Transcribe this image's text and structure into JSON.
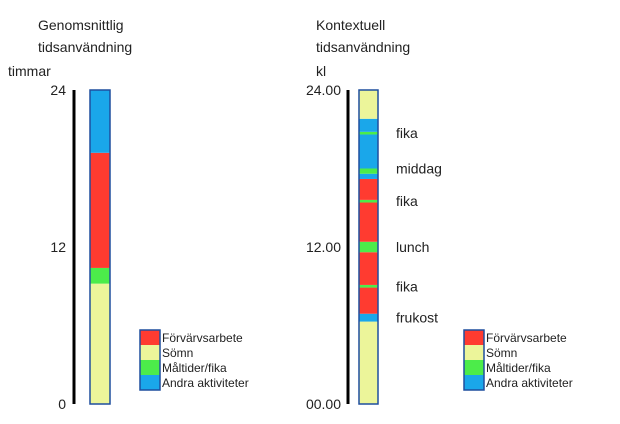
{
  "colors": {
    "forvarvsarbete": "#ff3b30",
    "somn": "#ecf59a",
    "maltider": "#4cec4a",
    "andra": "#1aa7ea",
    "axis": "#000000",
    "frame": "#1f4e9e"
  },
  "chart_data": [
    {
      "type": "bar",
      "title": "Genomsnittlig tidsanvändning",
      "ylabel": "timmar",
      "ylim": [
        0,
        24
      ],
      "y_ticks": [
        "0",
        "12",
        "24"
      ],
      "y_tick_values": [
        0,
        12,
        24
      ],
      "segments": [
        {
          "name": "Sömn",
          "color_key": "somn",
          "from": 0,
          "to": 9.2
        },
        {
          "name": "Måltider/fika",
          "color_key": "maltider",
          "from": 9.2,
          "to": 10.4
        },
        {
          "name": "Förvärvsarbete",
          "color_key": "forvarvsarbete",
          "from": 10.4,
          "to": 19.2
        },
        {
          "name": "Andra aktiviteter",
          "color_key": "andra",
          "from": 19.2,
          "to": 24
        }
      ],
      "legend": [
        {
          "label": "Förvärvsarbete",
          "color_key": "forvarvsarbete"
        },
        {
          "label": "Sömn",
          "color_key": "somn"
        },
        {
          "label": "Måltider/fika",
          "color_key": "maltider"
        },
        {
          "label": "Andra aktiviteter",
          "color_key": "andra"
        }
      ]
    },
    {
      "type": "bar",
      "title": "Kontextuell tidsanvändning",
      "ylabel": "kl",
      "ylim": [
        0,
        24
      ],
      "y_ticks": [
        "00.00",
        "12.00",
        "24.00"
      ],
      "y_tick_values": [
        0,
        12,
        24
      ],
      "segments": [
        {
          "color_key": "somn",
          "from": 0,
          "to": 6.3
        },
        {
          "color_key": "andra",
          "from": 6.3,
          "to": 6.9
        },
        {
          "color_key": "forvarvsarbete",
          "from": 6.9,
          "to": 8.9
        },
        {
          "color_key": "maltider",
          "from": 8.9,
          "to": 9.1
        },
        {
          "color_key": "forvarvsarbete",
          "from": 9.1,
          "to": 11.6
        },
        {
          "color_key": "maltider",
          "from": 11.6,
          "to": 12.4
        },
        {
          "color_key": "forvarvsarbete",
          "from": 12.4,
          "to": 15.4
        },
        {
          "color_key": "maltider",
          "from": 15.4,
          "to": 15.6
        },
        {
          "color_key": "forvarvsarbete",
          "from": 15.6,
          "to": 17.2
        },
        {
          "color_key": "andra",
          "from": 17.2,
          "to": 17.6
        },
        {
          "color_key": "maltider",
          "from": 17.6,
          "to": 18.0
        },
        {
          "color_key": "andra",
          "from": 18.0,
          "to": 20.6
        },
        {
          "color_key": "maltider",
          "from": 20.6,
          "to": 20.8
        },
        {
          "color_key": "andra",
          "from": 20.8,
          "to": 21.8
        },
        {
          "color_key": "somn",
          "from": 21.8,
          "to": 24
        }
      ],
      "annotations": [
        {
          "text": "fika",
          "y": 20.7
        },
        {
          "text": "middag",
          "y": 18.0
        },
        {
          "text": "fika",
          "y": 15.5
        },
        {
          "text": "lunch",
          "y": 12.0
        },
        {
          "text": "fika",
          "y": 9.0
        },
        {
          "text": "frukost",
          "y": 6.6
        }
      ],
      "legend": [
        {
          "label": "Förvärvsarbete",
          "color_key": "forvarvsarbete"
        },
        {
          "label": "Sömn",
          "color_key": "somn"
        },
        {
          "label": "Måltider/fika",
          "color_key": "maltider"
        },
        {
          "label": "Andra aktiviteter",
          "color_key": "andra"
        }
      ]
    }
  ]
}
